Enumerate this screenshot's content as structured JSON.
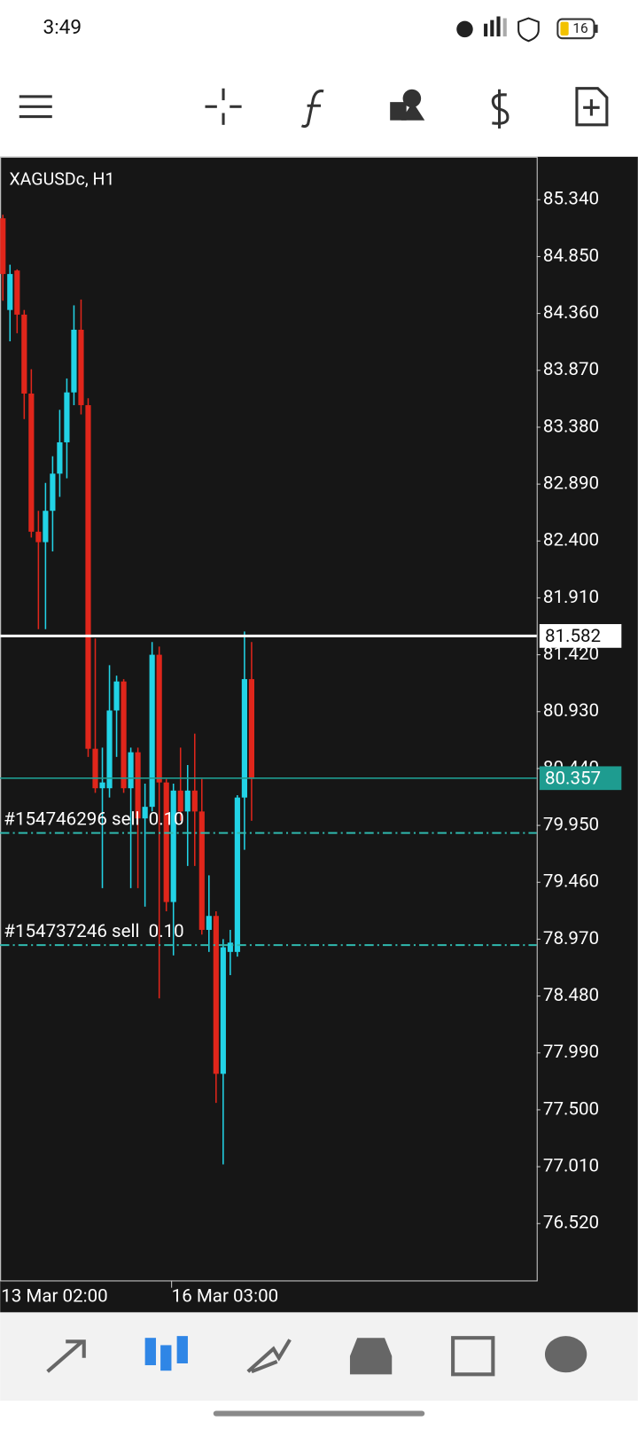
{
  "status_bar": {
    "time": "3:49",
    "battery": "16"
  },
  "chart_data": {
    "type": "candlestick",
    "title": "XAGUSDc, H1",
    "x": [
      "13 Mar 02:00",
      null,
      null,
      null,
      null,
      null,
      null,
      null,
      null,
      null,
      null,
      null,
      null,
      null,
      null,
      null,
      null,
      null,
      null,
      null,
      null,
      null,
      null,
      null,
      "16 Mar 03:00",
      null,
      null,
      null,
      null,
      null,
      null,
      null,
      null,
      null,
      null,
      null
    ],
    "open": [
      85.18,
      84.39,
      84.73,
      84.35,
      83.67,
      82.48,
      82.39,
      82.66,
      82.98,
      83.25,
      83.68,
      84.22,
      83.57,
      80.61,
      80.27,
      80.27,
      80.94,
      81.19,
      80.27,
      80.58,
      80.01,
      80.11,
      81.42,
      80.32,
      79.29,
      80.25,
      80.07,
      80.25,
      80.07,
      79.05,
      79.17,
      77.81,
      78.86,
      78.86,
      80.19,
      81.21
    ],
    "high": [
      85.21,
      84.78,
      84.74,
      84.39,
      83.88,
      82.66,
      82.9,
      83.13,
      83.53,
      83.8,
      84.43,
      84.48,
      83.63,
      81.56,
      80.62,
      81.33,
      81.24,
      81.21,
      80.62,
      80.62,
      80.31,
      81.53,
      81.49,
      80.35,
      80.31,
      80.62,
      80.47,
      80.74,
      80.35,
      79.52,
      79.21,
      78.97,
      79.05,
      80.21,
      81.62,
      81.53
    ],
    "low": [
      84.47,
      84.12,
      84.19,
      83.45,
      82.43,
      81.64,
      81.64,
      82.31,
      82.78,
      82.94,
      83.57,
      83.49,
      80.54,
      80.23,
      79.41,
      80.19,
      80.54,
      80.23,
      79.41,
      79.41,
      79.25,
      80.07,
      78.46,
      79.21,
      78.83,
      79.99,
      79.6,
      79.6,
      79.01,
      78.86,
      77.56,
      77.03,
      78.66,
      78.82,
      79.74,
      79.99
    ],
    "close": [
      84.7,
      84.7,
      84.35,
      83.67,
      82.48,
      82.39,
      82.66,
      82.98,
      83.25,
      83.68,
      84.22,
      83.57,
      80.61,
      80.27,
      80.32,
      80.94,
      81.19,
      80.27,
      80.58,
      80.01,
      80.11,
      81.42,
      80.32,
      79.29,
      80.25,
      80.07,
      80.25,
      80.07,
      79.05,
      79.17,
      77.81,
      78.9,
      78.94,
      80.19,
      81.21,
      80.35
    ],
    "up_color": "#22d3e6",
    "down_color": "#e0261b",
    "ylim": [
      76.03,
      85.71
    ],
    "yticks": [
      {
        "value": 85.34,
        "label": "85.340"
      },
      {
        "value": 84.85,
        "label": "84.850"
      },
      {
        "value": 84.36,
        "label": "84.360"
      },
      {
        "value": 83.87,
        "label": "83.870"
      },
      {
        "value": 83.38,
        "label": "83.380"
      },
      {
        "value": 82.89,
        "label": "82.890"
      },
      {
        "value": 82.4,
        "label": "82.400"
      },
      {
        "value": 81.91,
        "label": "81.910"
      },
      {
        "value": 81.42,
        "label": "81.420"
      },
      {
        "value": 80.93,
        "label": "80.930"
      },
      {
        "value": 80.44,
        "label": "80.440"
      },
      {
        "value": 79.95,
        "label": "79.950"
      },
      {
        "value": 79.46,
        "label": "79.460"
      },
      {
        "value": 78.97,
        "label": "78.970"
      },
      {
        "value": 78.48,
        "label": "78.480"
      },
      {
        "value": 77.99,
        "label": "77.990"
      },
      {
        "value": 77.5,
        "label": "77.500"
      },
      {
        "value": 77.01,
        "label": "77.010"
      },
      {
        "value": 76.52,
        "label": "76.520"
      }
    ],
    "price_lines": [
      {
        "value": 81.582,
        "label": "81.582",
        "color": "#ffffff",
        "text_color": "#111111"
      },
      {
        "value": 80.357,
        "label": "80.357",
        "color": "#1e9c90",
        "text_color": "#ffffff"
      }
    ],
    "orders": [
      {
        "label": "#154746296 sell  0.10",
        "value": 79.885,
        "color": "#2fb8ae"
      },
      {
        "label": "#154737246 sell  0.10",
        "value": 78.919,
        "color": "#2fb8ae"
      }
    ]
  }
}
